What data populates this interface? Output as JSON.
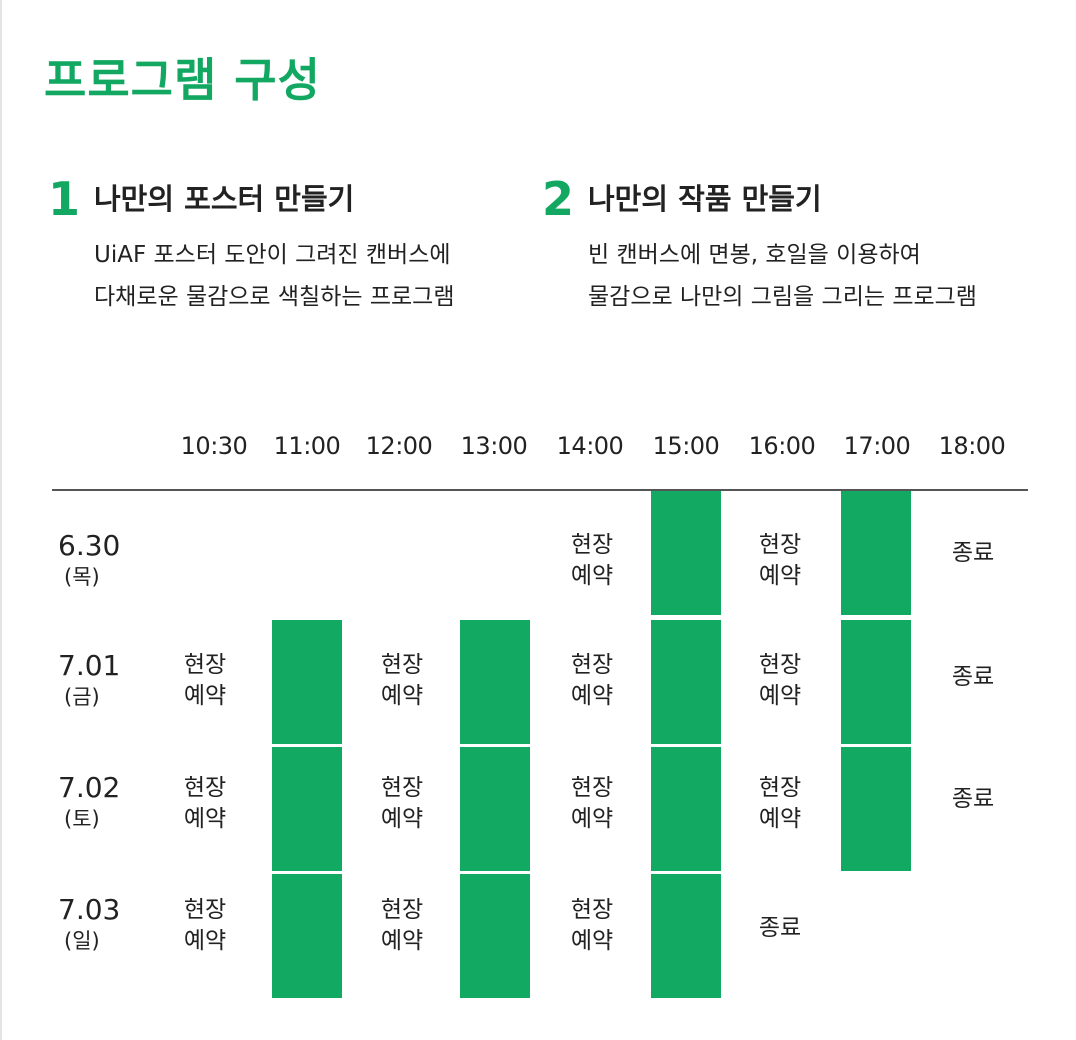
{
  "title": "프로그램 구성",
  "programs": [
    {
      "number": "1",
      "title": "나만의 포스터 만들기",
      "desc_line1": "UiAF 포스터 도안이 그려진 캔버스에",
      "desc_line2": "다채로운 물감으로 색칠하는 프로그램"
    },
    {
      "number": "2",
      "title": "나만의 작품 만들기",
      "desc_line1": "빈 캔버스에 면봉, 호일을 이용하여",
      "desc_line2": "물감으로 나만의 그림을 그리는 프로그램"
    }
  ],
  "schedule": {
    "times": [
      "10:30",
      "11:00",
      "12:00",
      "13:00",
      "14:00",
      "15:00",
      "16:00",
      "17:00",
      "18:00"
    ],
    "dates": [
      {
        "date": "6.30",
        "day": "(목)"
      },
      {
        "date": "7.01",
        "day": "(금)"
      },
      {
        "date": "7.02",
        "day": "(토)"
      },
      {
        "date": "7.03",
        "day": "(일)"
      }
    ],
    "onsite_line1": "현장",
    "onsite_line2": "예약",
    "closed": "종료"
  },
  "colors": {
    "accent": "#13a862",
    "block": "#12aa62",
    "text": "#222222"
  }
}
